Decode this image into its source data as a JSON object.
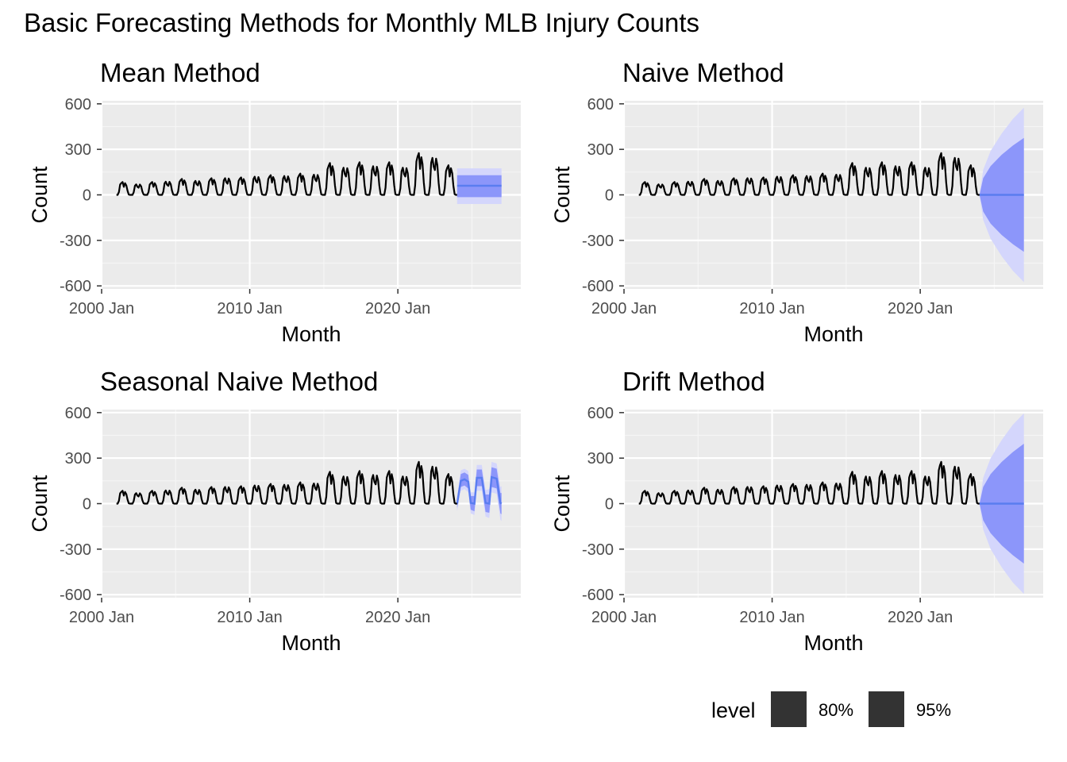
{
  "title": "Basic Forecasting Methods for Monthly MLB Injury Counts",
  "colors": {
    "panel_bg": "#EBEBEB",
    "grid_major": "#FFFFFF",
    "grid_minor": "#F5F5F5",
    "series": "#000000",
    "forecast_line": "#5A7DF0",
    "band_80": "#8C96FA",
    "band_95": "#D4D6FC",
    "legend_key": "#333333",
    "tick_text": "#4D4D4D"
  },
  "legend": {
    "title": "level",
    "items": [
      {
        "label": "80%"
      },
      {
        "label": "95%"
      }
    ]
  },
  "chart_data": [
    {
      "type": "line",
      "subtitle": "Mean Method",
      "xlabel": "Month",
      "ylabel": "Count",
      "xlim": [
        2000.0,
        2028.3
      ],
      "ylim": [
        -620,
        620
      ],
      "yticks": [
        -600,
        -300,
        0,
        300,
        600
      ],
      "yticklabels": [
        "-600",
        "-300",
        "0",
        "300",
        "600"
      ],
      "xticks": [
        2000,
        2010,
        2020
      ],
      "xticklabels": [
        "2000 Jan",
        "2010 Jan",
        "2020 Jan"
      ],
      "grid": true,
      "history": {
        "start": 2001.0,
        "end": 2024.0
      },
      "forecast": {
        "method": "mean",
        "start": 2024.0,
        "end": 2027.0,
        "points": [
          {
            "x": 2024.0,
            "mean": 60,
            "lo80": -15,
            "hi80": 130,
            "lo95": -60,
            "hi95": 175
          },
          {
            "x": 2027.0,
            "mean": 60,
            "lo80": -15,
            "hi80": 130,
            "lo95": -60,
            "hi95": 175
          }
        ]
      }
    },
    {
      "type": "line",
      "subtitle": "Naive Method",
      "xlabel": "Month",
      "ylabel": "Count",
      "xlim": [
        2000.0,
        2028.3
      ],
      "ylim": [
        -620,
        620
      ],
      "yticks": [
        -600,
        -300,
        0,
        300,
        600
      ],
      "yticklabels": [
        "-600",
        "-300",
        "0",
        "300",
        "600"
      ],
      "xticks": [
        2000,
        2010,
        2020
      ],
      "xticklabels": [
        "2000 Jan",
        "2010 Jan",
        "2020 Jan"
      ],
      "grid": true,
      "history": {
        "start": 2001.0,
        "end": 2024.0
      },
      "forecast": {
        "method": "naive",
        "start": 2024.0,
        "end": 2027.0,
        "points": [
          {
            "x": 2024.0,
            "mean": 0,
            "lo80": 0,
            "hi80": 0,
            "lo95": 0,
            "hi95": 0
          },
          {
            "x": 2024.25,
            "mean": 0,
            "lo80": -110,
            "hi80": 110,
            "lo95": -165,
            "hi95": 165
          },
          {
            "x": 2024.75,
            "mean": 0,
            "lo80": -190,
            "hi80": 190,
            "lo95": -290,
            "hi95": 290
          },
          {
            "x": 2025.5,
            "mean": 0,
            "lo80": -265,
            "hi80": 265,
            "lo95": -405,
            "hi95": 405
          },
          {
            "x": 2026.25,
            "mean": 0,
            "lo80": -325,
            "hi80": 325,
            "lo95": -500,
            "hi95": 500
          },
          {
            "x": 2027.0,
            "mean": 0,
            "lo80": -375,
            "hi80": 375,
            "lo95": -575,
            "hi95": 575
          }
        ]
      }
    },
    {
      "type": "line",
      "subtitle": "Seasonal Naive Method",
      "xlabel": "Month",
      "ylabel": "Count",
      "xlim": [
        2000.0,
        2028.3
      ],
      "ylim": [
        -620,
        620
      ],
      "yticks": [
        -600,
        -300,
        0,
        300,
        600
      ],
      "yticklabels": [
        "-600",
        "-300",
        "0",
        "300",
        "600"
      ],
      "xticks": [
        2000,
        2010,
        2020
      ],
      "xticklabels": [
        "2000 Jan",
        "2010 Jan",
        "2020 Jan"
      ],
      "grid": true,
      "history": {
        "start": 2001.0,
        "end": 2024.0
      },
      "forecast": {
        "method": "seasonal-naive",
        "start": 2024.0,
        "end": 2027.0,
        "points": [
          {
            "x": 2024.0,
            "mean": 0,
            "lo80": -30,
            "hi80": 30,
            "lo95": -50,
            "hi95": 50
          },
          {
            "x": 2024.25,
            "mean": 150,
            "lo80": 110,
            "hi80": 195,
            "lo95": 85,
            "hi95": 220
          },
          {
            "x": 2024.5,
            "mean": 160,
            "lo80": 120,
            "hi80": 205,
            "lo95": 95,
            "hi95": 230
          },
          {
            "x": 2024.75,
            "mean": 145,
            "lo80": 100,
            "hi80": 190,
            "lo95": 75,
            "hi95": 215
          },
          {
            "x": 2024.92,
            "mean": 5,
            "lo80": -40,
            "hi80": 50,
            "lo95": -65,
            "hi95": 75
          },
          {
            "x": 2025.17,
            "mean": 0,
            "lo80": -50,
            "hi80": 50,
            "lo95": -75,
            "hi95": 75
          },
          {
            "x": 2025.33,
            "mean": 170,
            "lo80": 115,
            "hi80": 225,
            "lo95": 85,
            "hi95": 255
          },
          {
            "x": 2025.67,
            "mean": 170,
            "lo80": 115,
            "hi80": 225,
            "lo95": 85,
            "hi95": 255
          },
          {
            "x": 2025.92,
            "mean": 5,
            "lo80": -55,
            "hi80": 60,
            "lo95": -85,
            "hi95": 90
          },
          {
            "x": 2026.17,
            "mean": 0,
            "lo80": -60,
            "hi80": 60,
            "lo95": -95,
            "hi95": 95
          },
          {
            "x": 2026.33,
            "mean": 175,
            "lo80": 110,
            "hi80": 240,
            "lo95": 75,
            "hi95": 275
          },
          {
            "x": 2026.67,
            "mean": 165,
            "lo80": 100,
            "hi80": 230,
            "lo95": 65,
            "hi95": 265
          },
          {
            "x": 2026.92,
            "mean": 5,
            "lo80": -65,
            "hi80": 70,
            "lo95": -105,
            "hi95": 110
          },
          {
            "x": 2027.0,
            "mean": 0,
            "lo80": -70,
            "hi80": 70,
            "lo95": -115,
            "hi95": 115
          }
        ]
      }
    },
    {
      "type": "line",
      "subtitle": "Drift Method",
      "xlabel": "Month",
      "ylabel": "Count",
      "xlim": [
        2000.0,
        2028.3
      ],
      "ylim": [
        -620,
        620
      ],
      "yticks": [
        -600,
        -300,
        0,
        300,
        600
      ],
      "yticklabels": [
        "-600",
        "-300",
        "0",
        "300",
        "600"
      ],
      "xticks": [
        2000,
        2010,
        2020
      ],
      "xticklabels": [
        "2000 Jan",
        "2010 Jan",
        "2020 Jan"
      ],
      "grid": true,
      "history": {
        "start": 2001.0,
        "end": 2024.0
      },
      "forecast": {
        "method": "drift",
        "start": 2024.0,
        "end": 2027.0,
        "points": [
          {
            "x": 2024.0,
            "mean": 0,
            "lo80": 0,
            "hi80": 0,
            "lo95": 0,
            "hi95": 0
          },
          {
            "x": 2024.25,
            "mean": 0,
            "lo80": -110,
            "hi80": 110,
            "lo95": -170,
            "hi95": 170
          },
          {
            "x": 2024.75,
            "mean": 0,
            "lo80": -195,
            "hi80": 195,
            "lo95": -300,
            "hi95": 300
          },
          {
            "x": 2025.5,
            "mean": 0,
            "lo80": -275,
            "hi80": 275,
            "lo95": -420,
            "hi95": 420
          },
          {
            "x": 2026.25,
            "mean": 0,
            "lo80": -340,
            "hi80": 340,
            "lo95": -520,
            "hi95": 520
          },
          {
            "x": 2027.0,
            "mean": 0,
            "lo80": -395,
            "hi80": 395,
            "lo95": -595,
            "hi95": 595
          }
        ]
      }
    }
  ],
  "history_series": {
    "name": "",
    "years": [
      2001,
      2002,
      2003,
      2004,
      2005,
      2006,
      2007,
      2008,
      2009,
      2010,
      2011,
      2012,
      2013,
      2014,
      2015,
      2016,
      2017,
      2018,
      2019,
      2020,
      2021,
      2022,
      2023
    ],
    "peaks": [
      85,
      75,
      85,
      95,
      105,
      100,
      110,
      120,
      115,
      130,
      130,
      135,
      140,
      145,
      210,
      195,
      215,
      205,
      215,
      195,
      275,
      265,
      195
    ]
  }
}
